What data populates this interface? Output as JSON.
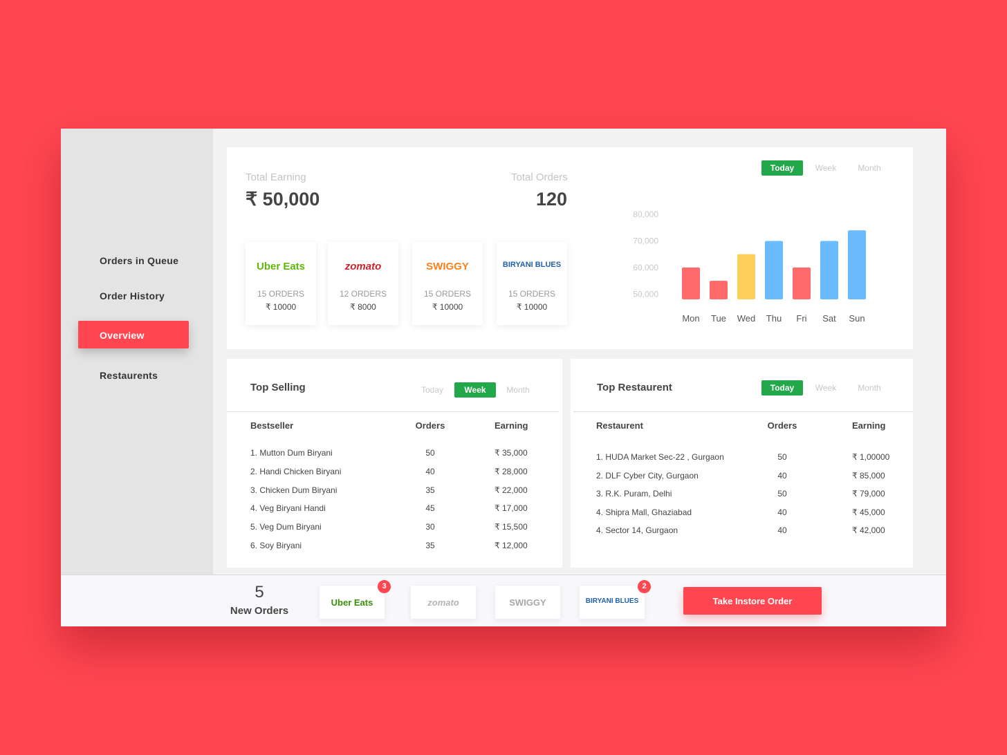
{
  "sidebar": {
    "items": [
      "Orders in Queue",
      "Order History",
      "Overview",
      "Restaurents"
    ],
    "active": 2
  },
  "summary": {
    "earning_label": "Total Earning",
    "earning": "₹ 50,000",
    "orders_label": "Total Orders",
    "orders": 120
  },
  "platforms": [
    {
      "name": "Uber Eats",
      "color": "#5fb709",
      "orders": "15 ORDERS",
      "earning": "₹ 10000"
    },
    {
      "name": "zomato",
      "color": "#cb202d",
      "orders": "12 ORDERS",
      "earning": "₹ 8000"
    },
    {
      "name": "SWIGGY",
      "color": "#fc8019",
      "orders": "15 ORDERS",
      "earning": "₹ 10000"
    },
    {
      "name": "BIRYANI BLUES",
      "color": "#1f5fa8",
      "orders": "15 ORDERS",
      "earning": "₹ 10000"
    }
  ],
  "chart_data": {
    "type": "bar",
    "tabs": {
      "options": [
        "Today",
        "Week",
        "Month"
      ],
      "active": 0
    },
    "categories": [
      "Mon",
      "Tue",
      "Wed",
      "Thu",
      "Fri",
      "Sat",
      "Sun"
    ],
    "values": [
      60000,
      55000,
      65000,
      70000,
      60000,
      70000,
      74000
    ],
    "colors": [
      "#ff6b6b",
      "#ff6b6b",
      "#ffcf5c",
      "#6bbcff",
      "#ff6b6b",
      "#6bbcff",
      "#6bbcff"
    ],
    "ylim": [
      48000,
      80000
    ],
    "yticks": [
      {
        "value": 50000,
        "label": "50,000"
      },
      {
        "value": 60000,
        "label": "60,000"
      },
      {
        "value": 70000,
        "label": "70,000"
      },
      {
        "value": 80000,
        "label": "80,000"
      }
    ],
    "grid": false
  },
  "top_selling": {
    "title": "Top Selling",
    "tabs": {
      "options": [
        "Today",
        "Week",
        "Month"
      ],
      "active": 1
    },
    "columns": [
      "Bestseller",
      "Orders",
      "Earning"
    ],
    "rows": [
      [
        "1. Mutton Dum Biryani",
        50,
        "₹ 35,000"
      ],
      [
        "2. Handi Chicken Biryani",
        40,
        "₹ 28,000"
      ],
      [
        "3. Chicken Dum Biryani",
        35,
        "₹ 22,000"
      ],
      [
        "4. Veg Biryani Handi",
        45,
        "₹ 17,000"
      ],
      [
        "5. Veg Dum Biryani",
        30,
        "₹ 15,500"
      ],
      [
        "6. Soy Biryani",
        35,
        "₹ 12,000"
      ]
    ]
  },
  "top_restaurant": {
    "title": "Top Restaurent",
    "tabs": {
      "options": [
        "Today",
        "Week",
        "Month"
      ],
      "active": 0
    },
    "columns": [
      "Restaurent",
      "Orders",
      "Earning"
    ],
    "rows": [
      [
        "1. HUDA Market Sec-22 , Gurgaon",
        50,
        "₹ 1,00000"
      ],
      [
        "2. DLF Cyber City, Gurgaon",
        40,
        "₹ 85,000"
      ],
      [
        "3. R.K. Puram, Delhi",
        50,
        "₹ 79,000"
      ],
      [
        "4. Shipra Mall, Ghaziabad",
        40,
        "₹ 45,000"
      ],
      [
        "4. Sector 14, Gurgaon",
        40,
        "₹ 42,000"
      ]
    ]
  },
  "footer": {
    "count": 5,
    "label": "New Orders",
    "platforms": [
      {
        "name": "Uber Eats",
        "color": "#3a8f06",
        "badge": 3
      },
      {
        "name": "zomato",
        "color": "#b5b5b5"
      },
      {
        "name": "SWIGGY",
        "color": "#a8a8a8"
      },
      {
        "name": "BIRYANI BLUES",
        "color": "#1f5fa8",
        "badge": 2
      }
    ],
    "button": "Take Instore Order"
  }
}
